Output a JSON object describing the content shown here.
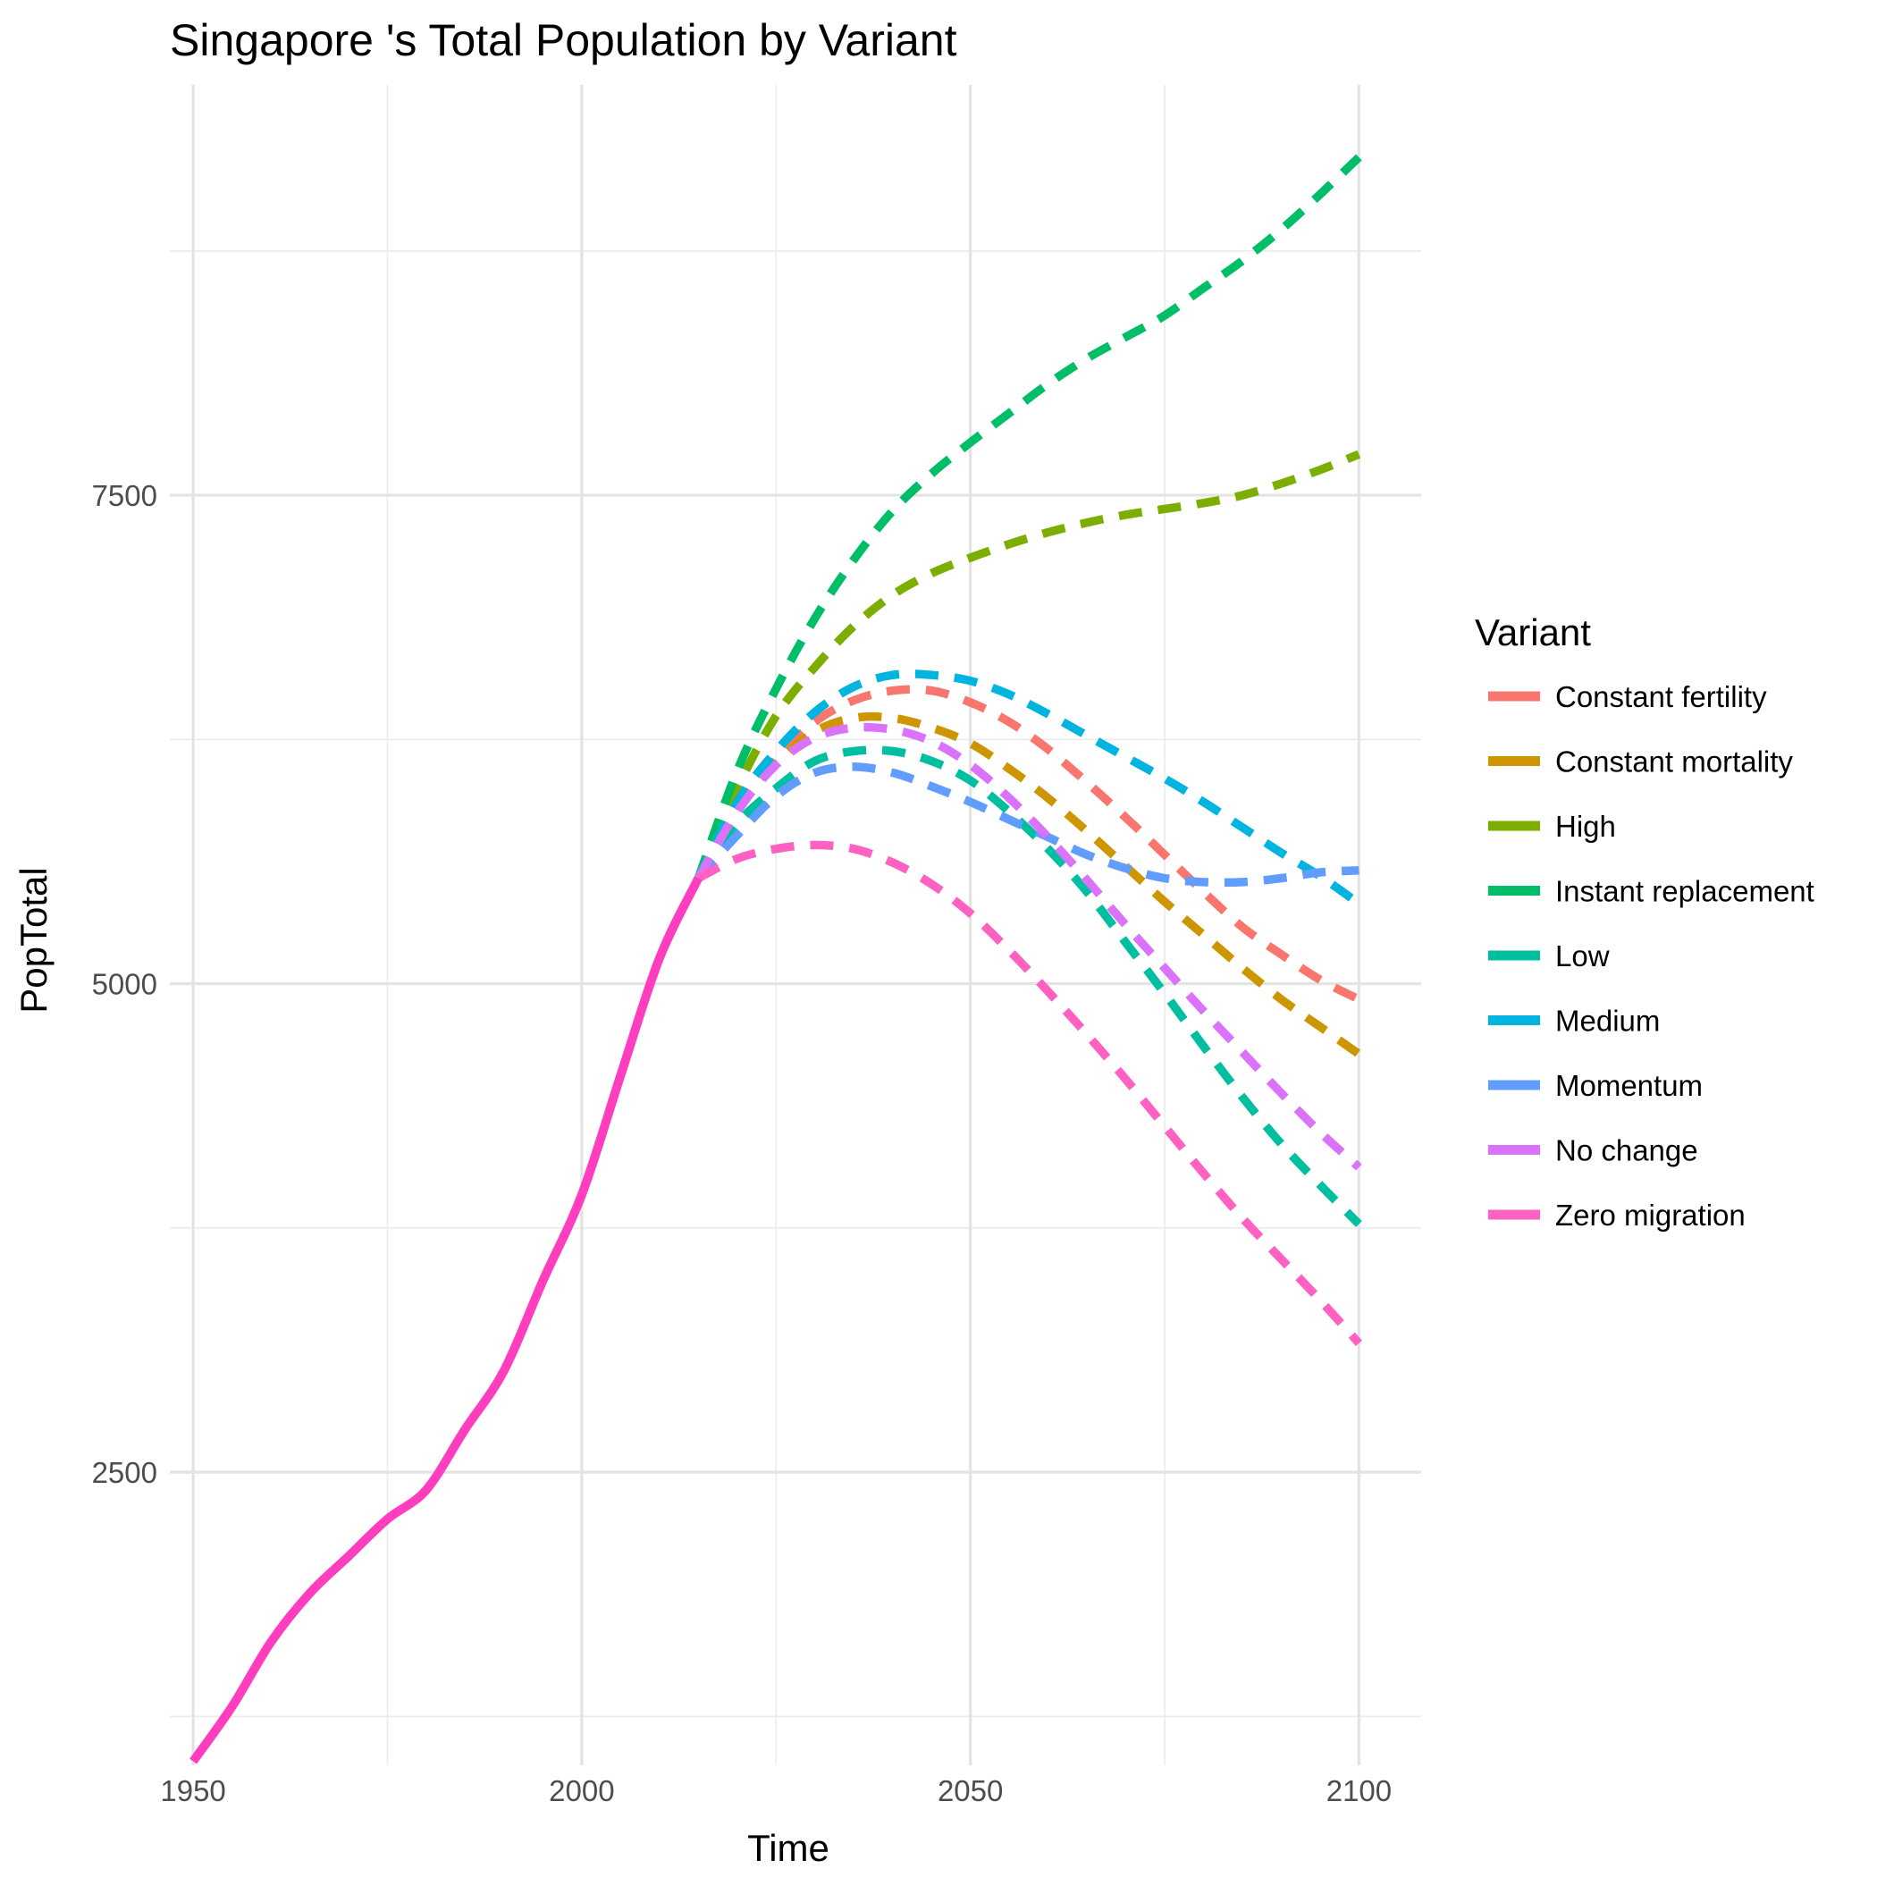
{
  "chart_data": {
    "type": "line",
    "title": "Singapore 's Total Population by Variant",
    "xlabel": "Time",
    "ylabel": "PopTotal",
    "xlim": [
      1947,
      2108
    ],
    "ylim": [
      1000,
      9600
    ],
    "x_ticks": [
      1950,
      2000,
      2050,
      2100
    ],
    "x_tick_labels": [
      "1950",
      "2000",
      "2050",
      "2100"
    ],
    "y_ticks": [
      2500,
      5000,
      7500
    ],
    "y_tick_labels": [
      "2500",
      "5000",
      "7500"
    ],
    "grid": true,
    "legend": {
      "title": "Variant",
      "placement": "right"
    },
    "historical": {
      "color": "#FF3DBF",
      "x": [
        1950,
        1955,
        1960,
        1965,
        1970,
        1975,
        1980,
        1985,
        1990,
        1995,
        2000,
        2005,
        2010,
        2015
      ],
      "y": [
        1020,
        1300,
        1630,
        1880,
        2070,
        2260,
        2410,
        2720,
        3020,
        3480,
        3920,
        4530,
        5130,
        5540
      ]
    },
    "series": [
      {
        "name": "Constant fertility",
        "color": "#F8766D",
        "x": [
          2015,
          2020,
          2025,
          2030,
          2035,
          2040,
          2045,
          2050,
          2055,
          2060,
          2065,
          2070,
          2075,
          2080,
          2085,
          2090,
          2095,
          2100
        ],
        "y": [
          5540,
          5900,
          6150,
          6340,
          6450,
          6500,
          6500,
          6440,
          6340,
          6200,
          6030,
          5850,
          5660,
          5470,
          5290,
          5150,
          5020,
          4920
        ]
      },
      {
        "name": "Constant mortality",
        "color": "#CD9600",
        "x": [
          2015,
          2020,
          2025,
          2030,
          2035,
          2040,
          2045,
          2050,
          2055,
          2060,
          2065,
          2070,
          2075,
          2080,
          2085,
          2090,
          2095,
          2100
        ],
        "y": [
          5540,
          5900,
          6130,
          6290,
          6360,
          6360,
          6310,
          6230,
          6100,
          5950,
          5780,
          5600,
          5420,
          5250,
          5080,
          4920,
          4780,
          4640
        ]
      },
      {
        "name": "High",
        "color": "#7CAE00",
        "x": [
          2015,
          2020,
          2025,
          2030,
          2035,
          2040,
          2045,
          2050,
          2055,
          2060,
          2065,
          2070,
          2075,
          2080,
          2085,
          2090,
          2095,
          2100
        ],
        "y": [
          5540,
          6000,
          6370,
          6620,
          6830,
          6990,
          7100,
          7180,
          7250,
          7310,
          7360,
          7400,
          7430,
          7460,
          7500,
          7560,
          7630,
          7710
        ]
      },
      {
        "name": "Instant replacement",
        "color": "#00BE67",
        "x": [
          2015,
          2020,
          2025,
          2030,
          2035,
          2040,
          2045,
          2050,
          2055,
          2060,
          2065,
          2070,
          2075,
          2080,
          2085,
          2090,
          2095,
          2100
        ],
        "y": [
          5540,
          6090,
          6510,
          6870,
          7170,
          7420,
          7610,
          7770,
          7920,
          8070,
          8200,
          8310,
          8420,
          8560,
          8700,
          8860,
          9040,
          9230
        ]
      },
      {
        "name": "Low",
        "color": "#00BFA0",
        "x": [
          2015,
          2020,
          2025,
          2030,
          2035,
          2040,
          2045,
          2050,
          2055,
          2060,
          2065,
          2070,
          2075,
          2080,
          2085,
          2090,
          2095,
          2100
        ],
        "y": [
          5540,
          5820,
          6000,
          6140,
          6190,
          6190,
          6140,
          6040,
          5880,
          5690,
          5470,
          5210,
          4950,
          4680,
          4420,
          4180,
          3970,
          3770
        ]
      },
      {
        "name": "Medium",
        "color": "#00B4E0",
        "x": [
          2015,
          2020,
          2025,
          2030,
          2035,
          2040,
          2045,
          2050,
          2055,
          2060,
          2065,
          2070,
          2075,
          2080,
          2085,
          2090,
          2095,
          2100
        ],
        "y": [
          5540,
          5930,
          6190,
          6390,
          6520,
          6580,
          6580,
          6550,
          6480,
          6380,
          6270,
          6160,
          6050,
          5930,
          5800,
          5670,
          5550,
          5410
        ]
      },
      {
        "name": "Momentum",
        "color": "#619CFF",
        "x": [
          2015,
          2020,
          2025,
          2030,
          2035,
          2040,
          2045,
          2050,
          2055,
          2060,
          2065,
          2070,
          2075,
          2080,
          2085,
          2090,
          2095,
          2100
        ],
        "y": [
          5540,
          5760,
          5960,
          6080,
          6110,
          6080,
          6010,
          5930,
          5840,
          5750,
          5660,
          5590,
          5540,
          5520,
          5520,
          5540,
          5570,
          5580
        ]
      },
      {
        "name": "No change",
        "color": "#DB72FB",
        "x": [
          2015,
          2020,
          2025,
          2030,
          2035,
          2040,
          2045,
          2050,
          2055,
          2060,
          2065,
          2070,
          2075,
          2080,
          2085,
          2090,
          2095,
          2100
        ],
        "y": [
          5540,
          5880,
          6120,
          6260,
          6310,
          6300,
          6240,
          6120,
          5950,
          5750,
          5530,
          5300,
          5080,
          4860,
          4650,
          4440,
          4240,
          4060
        ]
      },
      {
        "name": "Zero migration",
        "color": "#FF61C3",
        "x": [
          2015,
          2020,
          2025,
          2030,
          2035,
          2040,
          2045,
          2050,
          2055,
          2060,
          2065,
          2070,
          2075,
          2080,
          2085,
          2090,
          2095,
          2100
        ],
        "y": [
          5540,
          5640,
          5690,
          5710,
          5690,
          5620,
          5510,
          5360,
          5170,
          4960,
          4740,
          4510,
          4270,
          4030,
          3800,
          3590,
          3380,
          3160
        ]
      }
    ]
  }
}
